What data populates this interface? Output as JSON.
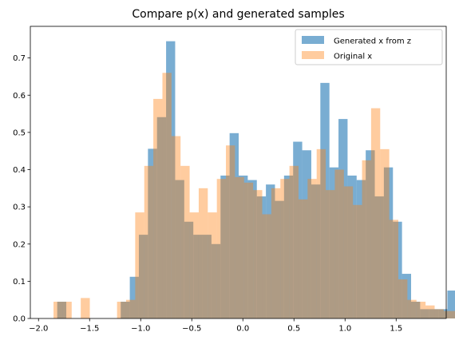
{
  "chart_data": {
    "type": "histogram",
    "title": "Compare p(x) and generated samples",
    "xlabel": "",
    "ylabel": "",
    "xlim": [
      -2.08,
      1.99
    ],
    "ylim": [
      0,
      0.785
    ],
    "xticks": [
      -2.0,
      -1.5,
      -1.0,
      -0.5,
      0.0,
      0.5,
      1.0,
      1.5
    ],
    "xtick_labels": [
      "−2.0",
      "−1.5",
      "−1.0",
      "−0.5",
      "0.0",
      "0.5",
      "1.0",
      "1.5"
    ],
    "yticks": [
      0.0,
      0.1,
      0.2,
      0.3,
      0.4,
      0.5,
      0.6,
      0.7
    ],
    "ytick_labels": [
      "0.0",
      "0.1",
      "0.2",
      "0.3",
      "0.4",
      "0.5",
      "0.6",
      "0.7"
    ],
    "grid": false,
    "legend_position": "top-right",
    "series": [
      {
        "name": "Generated x from z",
        "color": "#1f77b4",
        "opacity": 0.6,
        "bin_start": -1.817,
        "bin_width": 0.0888,
        "values": [
          0.045,
          0,
          0,
          0,
          0,
          0,
          0,
          0.045,
          0.112,
          0.225,
          0.456,
          0.541,
          0.745,
          0.372,
          0.26,
          0.225,
          0.225,
          0.2,
          0.384,
          0.498,
          0.384,
          0.372,
          0.328,
          0.36,
          0.316,
          0.384,
          0.475,
          0.452,
          0.36,
          0.633,
          0.406,
          0.536,
          0.384,
          0.372,
          0.452,
          0.328,
          0.406,
          0.26,
          0.12,
          0.045,
          0.025,
          0.025,
          0.025,
          0.075
        ]
      },
      {
        "name": "Original x",
        "color": "#ff7f0e",
        "opacity": 0.4,
        "bin_start": -1.853,
        "bin_width": 0.0888,
        "values": [
          0.045,
          0.045,
          0,
          0.055,
          0,
          0,
          0,
          0.045,
          0.05,
          0.285,
          0.41,
          0.59,
          0.66,
          0.49,
          0.41,
          0.285,
          0.35,
          0.285,
          0.375,
          0.465,
          0.38,
          0.365,
          0.345,
          0.28,
          0.35,
          0.375,
          0.41,
          0.32,
          0.375,
          0.455,
          0.345,
          0.4,
          0.355,
          0.305,
          0.425,
          0.565,
          0.455,
          0.265,
          0.105,
          0.05,
          0.045,
          0.035,
          0.025,
          0.02,
          0.02
        ]
      }
    ]
  }
}
